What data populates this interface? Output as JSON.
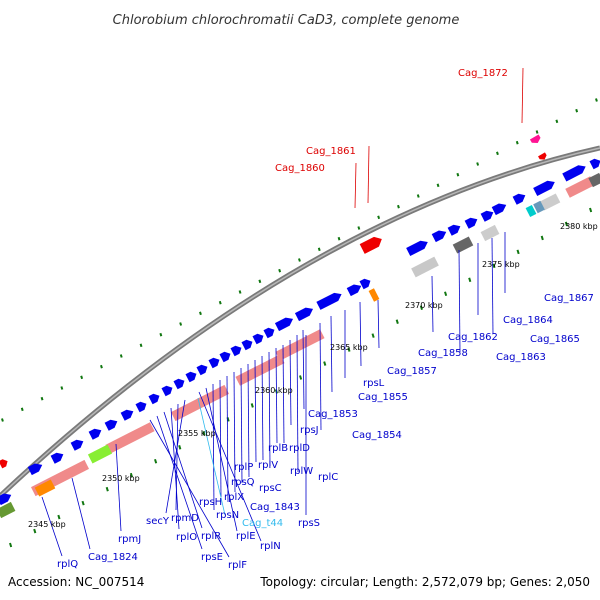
{
  "title": "Chlorobium chlorochromatii CaD3, complete genome",
  "footer": {
    "accession": "Accession: NC_007514",
    "topology": "Topology: circular; Length: 2,572,079 bp; Genes: 2,050"
  },
  "colors": {
    "backbone": "#888888",
    "forward_cds": "#0000ee",
    "rrna": "#f08a8a",
    "label_default": "#0000cc",
    "label_highlight": "#dd0000",
    "label_trna": "#33bbee",
    "tick": "#117711"
  },
  "scale_labels": [
    "2345 kbp",
    "2350 kbp",
    "2355 kbp",
    "2360 kbp",
    "2365 kbp",
    "2370 kbp",
    "2375 kbp",
    "2380 kbp"
  ],
  "gene_labels": [
    {
      "name": "Cag_1872",
      "kind": "highlight"
    },
    {
      "name": "Cag_1861",
      "kind": "highlight"
    },
    {
      "name": "Cag_1860",
      "kind": "highlight"
    },
    {
      "name": "Cag_1867",
      "kind": "default"
    },
    {
      "name": "Cag_1864",
      "kind": "default"
    },
    {
      "name": "Cag_1865",
      "kind": "default"
    },
    {
      "name": "Cag_1862",
      "kind": "default"
    },
    {
      "name": "Cag_1863",
      "kind": "default"
    },
    {
      "name": "Cag_1858",
      "kind": "default"
    },
    {
      "name": "Cag_1857",
      "kind": "default"
    },
    {
      "name": "rpsL",
      "kind": "default"
    },
    {
      "name": "Cag_1855",
      "kind": "default"
    },
    {
      "name": "Cag_1853",
      "kind": "default"
    },
    {
      "name": "Cag_1854",
      "kind": "default"
    },
    {
      "name": "rpsJ",
      "kind": "default"
    },
    {
      "name": "rplB",
      "kind": "default"
    },
    {
      "name": "rplD",
      "kind": "default"
    },
    {
      "name": "rplW",
      "kind": "default"
    },
    {
      "name": "rplC",
      "kind": "default"
    },
    {
      "name": "rplV",
      "kind": "default"
    },
    {
      "name": "rplP",
      "kind": "default"
    },
    {
      "name": "rpsQ",
      "kind": "default"
    },
    {
      "name": "rpsC",
      "kind": "default"
    },
    {
      "name": "rplX",
      "kind": "default"
    },
    {
      "name": "Cag_1843",
      "kind": "default"
    },
    {
      "name": "rpsH",
      "kind": "default"
    },
    {
      "name": "rpsN",
      "kind": "default"
    },
    {
      "name": "Cag_t44",
      "kind": "trna"
    },
    {
      "name": "rpsS",
      "kind": "default"
    },
    {
      "name": "rplE",
      "kind": "default"
    },
    {
      "name": "rplN",
      "kind": "default"
    },
    {
      "name": "secY",
      "kind": "default"
    },
    {
      "name": "rpmD",
      "kind": "default"
    },
    {
      "name": "rplO",
      "kind": "default"
    },
    {
      "name": "rplR",
      "kind": "default"
    },
    {
      "name": "rpsE",
      "kind": "default"
    },
    {
      "name": "rplF",
      "kind": "default"
    },
    {
      "name": "rpmJ",
      "kind": "default"
    },
    {
      "name": "rplQ",
      "kind": "default"
    },
    {
      "name": "Cag_1824",
      "kind": "default"
    }
  ]
}
